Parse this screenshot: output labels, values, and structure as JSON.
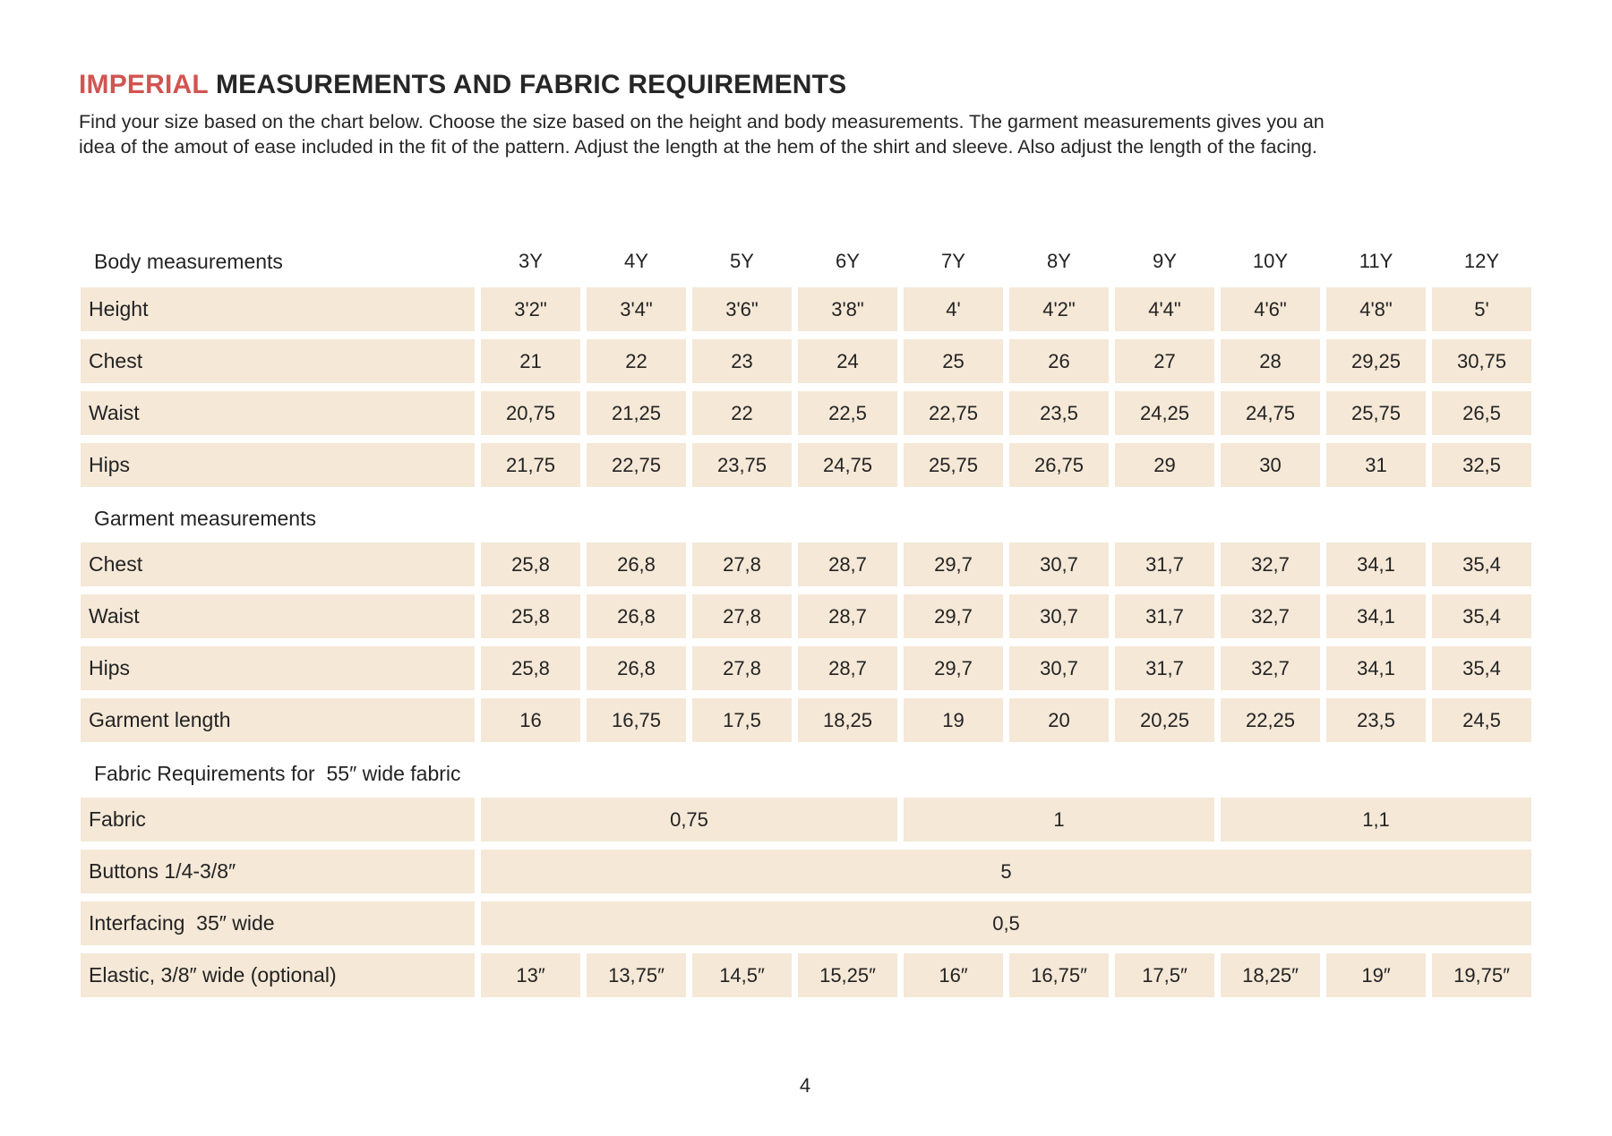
{
  "page": {
    "title": {
      "accent": "IMPERIAL",
      "rest": " MEASUREMENTS AND FABRIC REQUIREMENTS"
    },
    "intro": "Find your size based on the chart below. Choose the size based on the height and body measurements. The garment measurements gives you an idea of the amout of ease included in the fit of the pattern. Adjust the length at the hem of the shirt and sleeve. Also adjust the length of the facing.",
    "page_number": "4"
  },
  "colors": {
    "accent_red": "#d05552",
    "cell_beige": "#f5e8d7",
    "text_dark": "#232323"
  },
  "table": {
    "size_headers": [
      "3Y",
      "4Y",
      "5Y",
      "6Y",
      "7Y",
      "8Y",
      "9Y",
      "10Y",
      "11Y",
      "12Y"
    ],
    "sections": [
      {
        "heading": "Body measurements",
        "rows": [
          {
            "label": "Height",
            "values": [
              "3'2\"",
              "3'4\"",
              "3'6\"",
              "3'8\"",
              "4'",
              "4'2\"",
              "4'4\"",
              "4'6\"",
              "4'8\"",
              "5'"
            ]
          },
          {
            "label": "Chest",
            "values": [
              "21",
              "22",
              "23",
              "24",
              "25",
              "26",
              "27",
              "28",
              "29,25",
              "30,75"
            ]
          },
          {
            "label": "Waist",
            "values": [
              "20,75",
              "21,25",
              "22",
              "22,5",
              "22,75",
              "23,5",
              "24,25",
              "24,75",
              "25,75",
              "26,5"
            ]
          },
          {
            "label": "Hips",
            "values": [
              "21,75",
              "22,75",
              "23,75",
              "24,75",
              "25,75",
              "26,75",
              "29",
              "30",
              "31",
              "32,5"
            ]
          }
        ]
      },
      {
        "heading": "Garment measurements",
        "rows": [
          {
            "label": "Chest",
            "values": [
              "25,8",
              "26,8",
              "27,8",
              "28,7",
              "29,7",
              "30,7",
              "31,7",
              "32,7",
              "34,1",
              "35,4"
            ]
          },
          {
            "label": "Waist",
            "values": [
              "25,8",
              "26,8",
              "27,8",
              "28,7",
              "29,7",
              "30,7",
              "31,7",
              "32,7",
              "34,1",
              "35,4"
            ]
          },
          {
            "label": "Hips",
            "values": [
              "25,8",
              "26,8",
              "27,8",
              "28,7",
              "29,7",
              "30,7",
              "31,7",
              "32,7",
              "34,1",
              "35,4"
            ]
          },
          {
            "label": "Garment length",
            "values": [
              "16",
              "16,75",
              "17,5",
              "18,25",
              "19",
              "20",
              "20,25",
              "22,25",
              "23,5",
              "24,5"
            ]
          }
        ]
      },
      {
        "heading": "Fabric Requirements for  55″ wide fabric",
        "rows": [
          {
            "label": "Fabric",
            "cells": [
              {
                "text": "0,75",
                "span": 4
              },
              {
                "text": "1",
                "span": 3
              },
              {
                "text": "1,1",
                "span": 3
              }
            ]
          },
          {
            "label": "Buttons 1/4-3/8″",
            "cells": [
              {
                "text": "5",
                "span": 10
              }
            ]
          },
          {
            "label": "Interfacing  35″ wide",
            "cells": [
              {
                "text": "0,5",
                "span": 10
              }
            ]
          },
          {
            "label": "Elastic, 3/8″ wide (optional)",
            "values": [
              "13″",
              "13,75″",
              "14,5″",
              "15,25″",
              "16″",
              "16,75″",
              "17,5″",
              "18,25″",
              "19″",
              "19,75″"
            ]
          }
        ]
      }
    ]
  }
}
